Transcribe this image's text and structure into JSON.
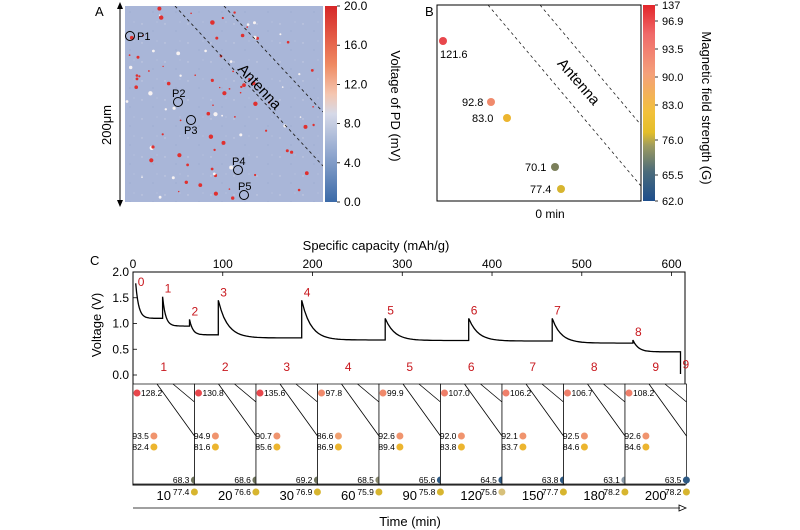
{
  "panels": {
    "a": "A",
    "b": "B",
    "c": "C"
  },
  "chart_data": [
    {
      "type": "heatmap",
      "panel": "A",
      "ylabel_left": "200μm",
      "antenna_label": "Antenna",
      "colorbar": {
        "label": "Voltage of PD (mV)",
        "ticks": [
          "20.0",
          "16.0",
          "12.0",
          "8.0",
          "4.0",
          "0.0"
        ],
        "range": [
          0,
          20
        ],
        "colors": [
          "#d62728",
          "#ef8a62",
          "#fddbc7",
          "#d1d5e6",
          "#92a8cf",
          "#3b6aa8"
        ]
      },
      "background_color": "#a9b6d8",
      "points": [
        {
          "label": "P1",
          "order": 1
        },
        {
          "label": "P2",
          "order": 2
        },
        {
          "label": "P3",
          "order": 3
        },
        {
          "label": "P4",
          "order": 4
        },
        {
          "label": "P5",
          "order": 5
        }
      ]
    },
    {
      "type": "scatter",
      "panel": "B",
      "antenna_label": "Antenna",
      "xlabel": "0 min",
      "colorbar": {
        "label": "Magnetic field strength (G)",
        "ticks": [
          "137",
          "96.9",
          "93.5",
          "90.0",
          "83.0",
          "76.0",
          "65.5",
          "62.0"
        ]
      },
      "points": [
        {
          "value": "121.6",
          "color": "#e8474c"
        },
        {
          "value": "92.8",
          "color": "#f08a6c"
        },
        {
          "value": "83.0",
          "color": "#ecb52f"
        },
        {
          "value": "70.1",
          "color": "#7b7f5a"
        },
        {
          "value": "77.4",
          "color": "#d7b52f"
        }
      ]
    },
    {
      "type": "line",
      "panel": "C",
      "title": "Specific capacity (mAh/g)",
      "xlabel": "Time (min)",
      "ylabel": "Voltage (V)",
      "xlim": [
        0,
        615
      ],
      "ylim": [
        0,
        2.0
      ],
      "x_ticks": [
        "0",
        "100",
        "200",
        "300",
        "400",
        "500",
        "600"
      ],
      "y_ticks": [
        "0.0",
        "0.5",
        "1.0",
        "1.5",
        "2.0"
      ],
      "pulses": [
        {
          "label": "0",
          "x": 3,
          "peak": 1.78
        },
        {
          "label": "1",
          "x": 33,
          "peak": 1.52
        },
        {
          "label": "2",
          "x": 63,
          "peak": 1.08
        },
        {
          "label": "3",
          "x": 95,
          "peak": 1.45
        },
        {
          "label": "4",
          "x": 188,
          "peak": 1.45
        },
        {
          "label": "5",
          "x": 281,
          "peak": 1.1
        },
        {
          "label": "6",
          "x": 374,
          "peak": 1.1
        },
        {
          "label": "7",
          "x": 467,
          "peak": 1.1
        },
        {
          "label": "8",
          "x": 557,
          "peak": 0.68
        },
        {
          "label": "9",
          "x": 610,
          "peak": 0.05
        }
      ],
      "baselines": [
        1.1,
        0.95,
        0.78,
        0.72,
        0.68,
        0.67,
        0.66,
        0.62,
        0.45,
        0.03
      ],
      "snapshots": [
        {
          "index": "1",
          "time": "10",
          "values": [
            "128.2",
            "93.5",
            "82.4",
            "68.3",
            "77.4"
          ],
          "colors": [
            "#e8474c",
            "#f0946e",
            "#ecb52f",
            "#6e735c",
            "#d7b52f"
          ]
        },
        {
          "index": "2",
          "time": "20",
          "values": [
            "130.8",
            "94.9",
            "81.6",
            "68.6",
            "76.6"
          ],
          "colors": [
            "#e8474c",
            "#f0946e",
            "#ecb52f",
            "#6e735c",
            "#d7b52f"
          ]
        },
        {
          "index": "3",
          "time": "30",
          "values": [
            "135.6",
            "90.7",
            "85.6",
            "69.2",
            "76.9"
          ],
          "colors": [
            "#e8474c",
            "#f0946e",
            "#ecb52f",
            "#6e735c",
            "#d7b52f"
          ]
        },
        {
          "index": "4",
          "time": "60",
          "values": [
            "97.8",
            "86.6",
            "86.9",
            "68.5",
            "75.9"
          ],
          "colors": [
            "#f08a6c",
            "#f0a070",
            "#ecb52f",
            "#8a8a70",
            "#d7b52f"
          ]
        },
        {
          "index": "5",
          "time": "90",
          "values": [
            "99.9",
            "92.6",
            "89.4",
            "65.6",
            "75.8"
          ],
          "colors": [
            "#f08a6c",
            "#f0946e",
            "#ecb52f",
            "#2e5a84",
            "#d7b52f"
          ]
        },
        {
          "index": "6",
          "time": "120",
          "values": [
            "107.0",
            "92.0",
            "83.8",
            "64.5",
            "75.6"
          ],
          "colors": [
            "#ef7f6a",
            "#f0946e",
            "#ecb52f",
            "#2e5a84",
            "#d7c07a"
          ]
        },
        {
          "index": "7",
          "time": "150",
          "values": [
            "106.2",
            "92.1",
            "83.7",
            "63.8",
            "77.7"
          ],
          "colors": [
            "#ef7f6a",
            "#f0946e",
            "#ecb52f",
            "#2e5a84",
            "#d7b52f"
          ]
        },
        {
          "index": "8",
          "time": "180",
          "values": [
            "106.7",
            "92.5",
            "84.6",
            "63.1",
            "78.2"
          ],
          "colors": [
            "#ef7f6a",
            "#f0946e",
            "#ecb52f",
            "#8a9aa8",
            "#d7b52f"
          ]
        },
        {
          "index": "9",
          "time": "200",
          "values": [
            "108.2",
            "92.6",
            "84.6",
            "63.5",
            "78.2"
          ],
          "colors": [
            "#ef7f6a",
            "#f0946e",
            "#ecb52f",
            "#2e5a84",
            "#d7b52f"
          ]
        }
      ]
    }
  ]
}
